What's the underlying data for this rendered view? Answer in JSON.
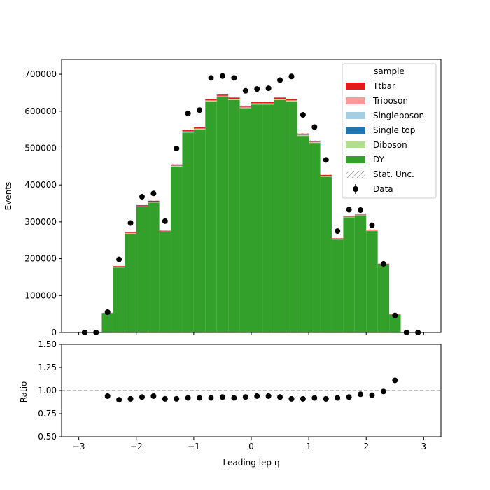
{
  "chart_data": [
    {
      "type": "bar",
      "panel": "main",
      "ylabel": "Events",
      "xlim": [
        -3.3,
        3.3
      ],
      "ylim": [
        0,
        740000
      ],
      "yticks": [
        0,
        100000,
        200000,
        300000,
        400000,
        500000,
        600000,
        700000
      ],
      "ytick_labels": [
        "0",
        "100000",
        "200000",
        "300000",
        "400000",
        "500000",
        "600000",
        "700000"
      ],
      "bin_edges": [
        -3.0,
        -2.8,
        -2.6,
        -2.4,
        -2.2,
        -2.0,
        -1.8,
        -1.6,
        -1.4,
        -1.2,
        -1.0,
        -0.8,
        -0.6,
        -0.4,
        -0.2,
        0.0,
        0.2,
        0.4,
        0.6,
        0.8,
        1.0,
        1.2,
        1.4,
        1.6,
        1.8,
        2.0,
        2.2,
        2.4,
        2.6,
        2.8,
        3.0
      ],
      "stacked": true,
      "series": [
        {
          "name": "DY",
          "color": "#33a02c",
          "values": [
            0,
            0,
            52000,
            176000,
            268000,
            340000,
            352000,
            272000,
            450000,
            542000,
            550000,
            626000,
            638000,
            630000,
            608000,
            618000,
            618000,
            630000,
            626000,
            533000,
            514000,
            422000,
            252000,
            312000,
            318000,
            275000,
            183000,
            49000,
            0,
            0
          ]
        },
        {
          "name": "Diboson",
          "color": "#b2df8a",
          "values": [
            0,
            0,
            300,
            800,
            1200,
            1500,
            1500,
            1200,
            1800,
            2100,
            2200,
            2400,
            2400,
            2400,
            2300,
            2300,
            2300,
            2400,
            2400,
            2100,
            2000,
            1700,
            1100,
            1300,
            1300,
            1100,
            800,
            300,
            0,
            0
          ]
        },
        {
          "name": "Single top",
          "color": "#1f78b4",
          "values": [
            0,
            0,
            100,
            300,
            400,
            500,
            500,
            400,
            600,
            700,
            700,
            800,
            800,
            800,
            800,
            800,
            800,
            800,
            800,
            700,
            700,
            600,
            400,
            400,
            400,
            400,
            300,
            100,
            0,
            0
          ]
        },
        {
          "name": "Singleboson",
          "color": "#a6cee3",
          "values": [
            0,
            0,
            100,
            200,
            300,
            300,
            300,
            300,
            400,
            500,
            500,
            500,
            500,
            500,
            500,
            500,
            500,
            500,
            500,
            500,
            400,
            400,
            300,
            300,
            300,
            300,
            200,
            100,
            0,
            0
          ]
        },
        {
          "name": "Triboson",
          "color": "#fb9a99",
          "values": [
            0,
            0,
            10,
            20,
            30,
            30,
            30,
            30,
            40,
            50,
            50,
            50,
            50,
            50,
            50,
            50,
            50,
            50,
            50,
            50,
            40,
            40,
            30,
            30,
            30,
            30,
            20,
            10,
            0,
            0
          ]
        },
        {
          "name": "Ttbar",
          "color": "#e31a1c",
          "values": [
            0,
            0,
            800,
            2500,
            3000,
            2800,
            2700,
            2000,
            3000,
            3200,
            3000,
            3200,
            3200,
            3100,
            3000,
            3000,
            3000,
            3100,
            3200,
            2900,
            2800,
            2400,
            1500,
            1800,
            2000,
            1900,
            2000,
            700,
            0,
            0
          ]
        }
      ],
      "data_points": {
        "name": "Data",
        "x": [
          -2.9,
          -2.7,
          -2.5,
          -2.3,
          -2.1,
          -1.9,
          -1.7,
          -1.5,
          -1.3,
          -1.1,
          -0.9,
          -0.7,
          -0.5,
          -0.3,
          -0.1,
          0.1,
          0.3,
          0.5,
          0.7,
          0.9,
          1.1,
          1.3,
          1.5,
          1.7,
          1.9,
          2.1,
          2.3,
          2.5,
          2.7,
          2.9
        ],
        "y": [
          0,
          0,
          55000,
          198000,
          297000,
          368000,
          377000,
          302000,
          499000,
          594000,
          603000,
          690000,
          695000,
          690000,
          655000,
          660000,
          662000,
          684000,
          694000,
          590000,
          557000,
          468000,
          275000,
          333000,
          332000,
          291000,
          186000,
          46000,
          0,
          0
        ]
      },
      "legend": {
        "title": "sample",
        "placement": "top-right",
        "entries": [
          {
            "label": "Ttbar",
            "color": "#e31a1c",
            "kind": "patch"
          },
          {
            "label": "Triboson",
            "color": "#fb9a99",
            "kind": "patch"
          },
          {
            "label": "Singleboson",
            "color": "#a6cee3",
            "kind": "patch"
          },
          {
            "label": "Single top",
            "color": "#1f78b4",
            "kind": "patch"
          },
          {
            "label": "Diboson",
            "color": "#b2df8a",
            "kind": "patch"
          },
          {
            "label": "DY",
            "color": "#33a02c",
            "kind": "patch"
          },
          {
            "label": "Stat. Unc.",
            "color": "#808080",
            "kind": "hatch"
          },
          {
            "label": "Data",
            "color": "#000000",
            "kind": "errorbar"
          }
        ]
      }
    },
    {
      "type": "scatter",
      "panel": "ratio",
      "ylabel": "Ratio",
      "xlabel": "Leading lep η",
      "xlim": [
        -3.3,
        3.3
      ],
      "ylim": [
        0.5,
        1.5
      ],
      "yticks": [
        0.5,
        0.75,
        1.0,
        1.25,
        1.5
      ],
      "ytick_labels": [
        "0.50",
        "0.75",
        "1.00",
        "1.25",
        "1.50"
      ],
      "xticks": [
        -3,
        -2,
        -1,
        0,
        1,
        2,
        3
      ],
      "xtick_labels": [
        "−3",
        "−2",
        "−1",
        "0",
        "1",
        "2",
        "3"
      ],
      "reference_line": 1.0,
      "x": [
        -2.5,
        -2.3,
        -2.1,
        -1.9,
        -1.7,
        -1.5,
        -1.3,
        -1.1,
        -0.9,
        -0.7,
        -0.5,
        -0.3,
        -0.1,
        0.1,
        0.3,
        0.5,
        0.7,
        0.9,
        1.1,
        1.3,
        1.5,
        1.7,
        1.9,
        2.1,
        2.3,
        2.5
      ],
      "y": [
        0.94,
        0.9,
        0.91,
        0.93,
        0.94,
        0.91,
        0.91,
        0.92,
        0.92,
        0.92,
        0.93,
        0.92,
        0.93,
        0.94,
        0.94,
        0.93,
        0.91,
        0.91,
        0.92,
        0.91,
        0.92,
        0.93,
        0.96,
        0.95,
        0.99,
        1.11
      ]
    }
  ],
  "colors": {
    "reference_line": "#808080",
    "markers": "#000000"
  }
}
